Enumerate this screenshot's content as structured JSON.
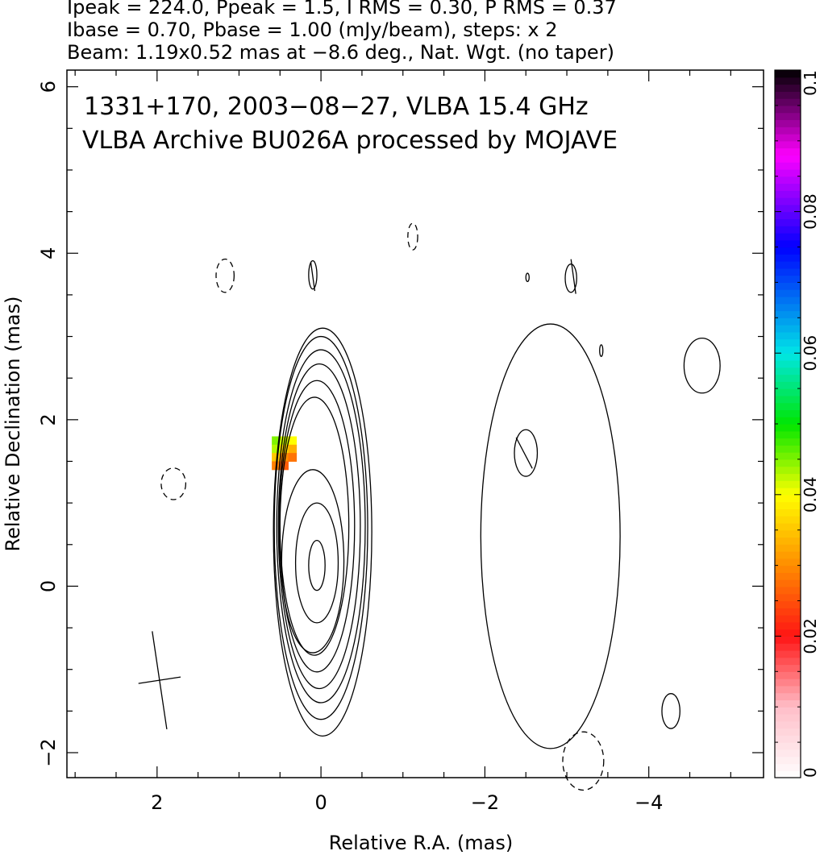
{
  "header": {
    "line1": "Ipeak = 224.0, Ppeak = 1.5, I RMS = 0.30, P RMS = 0.37",
    "line2": "Ibase = 0.70, Pbase = 1.00 (mJy/beam), steps: x 2",
    "line3": "Beam: 1.19x0.52 mas at −8.6 deg., Nat. Wgt. (no taper)"
  },
  "chart_data": {
    "type": "heatmap",
    "annotation_line1": "1331+170, 2003−08−27, VLBA 15.4 GHz",
    "annotation_line2": "VLBA Archive BU026A processed by MOJAVE",
    "xlabel": "Relative R.A. (mas)",
    "ylabel": "Relative Declination (mas)",
    "xlim": [
      3.1,
      -5.4
    ],
    "ylim": [
      -2.3,
      6.2
    ],
    "x_ticks": [
      2,
      0,
      -2,
      -4
    ],
    "x_tick_labels": [
      "2",
      "0",
      "−2",
      "−4"
    ],
    "y_ticks": [
      -2,
      0,
      2,
      4,
      6
    ],
    "y_tick_labels": [
      "−2",
      "0",
      "2",
      "4",
      "6"
    ],
    "colorbar": {
      "min": 0,
      "max": 0.1,
      "ticks": [
        0,
        0.02,
        0.04,
        0.06,
        0.08,
        0.1
      ],
      "tick_labels": [
        "0",
        "0.02",
        "0.04",
        "0.06",
        "0.08",
        "0.1"
      ]
    },
    "core_contours": [
      {
        "level": 0.7,
        "cx": -0.02,
        "cy": 0.65,
        "rx": 0.6,
        "ry": 2.45,
        "tilt": 0
      },
      {
        "level": 1.4,
        "cx": 0.0,
        "cy": 0.7,
        "rx": 0.57,
        "ry": 2.3,
        "tilt": 0
      },
      {
        "level": 2.8,
        "cx": 0.0,
        "cy": 0.72,
        "rx": 0.54,
        "ry": 2.12,
        "tilt": 0
      },
      {
        "level": 5.6,
        "cx": 0.02,
        "cy": 0.72,
        "rx": 0.5,
        "ry": 1.95,
        "tilt": 0
      },
      {
        "level": 11.2,
        "cx": 0.05,
        "cy": 0.72,
        "rx": 0.46,
        "ry": 1.75,
        "tilt": 0
      },
      {
        "level": 22.4,
        "cx": 0.08,
        "cy": 0.72,
        "rx": 0.42,
        "ry": 1.55,
        "tilt": 0
      },
      {
        "level": 44.8,
        "cx": 0.1,
        "cy": 0.3,
        "rx": 0.38,
        "ry": 1.1,
        "tilt": 0
      },
      {
        "level": 89.6,
        "cx": 0.05,
        "cy": 0.28,
        "rx": 0.26,
        "ry": 0.72,
        "tilt": 0
      },
      {
        "level": 179.2,
        "cx": 0.05,
        "cy": 0.25,
        "rx": 0.1,
        "ry": 0.3,
        "tilt": 0
      }
    ],
    "lobe_contours": [
      {
        "level": 0.7,
        "cx": -2.8,
        "cy": 0.6,
        "rx": 0.85,
        "ry": 2.55,
        "tilt": 0
      },
      {
        "level": 0.7,
        "cx": -2.5,
        "cy": 1.6,
        "rx": 0.14,
        "ry": 0.28,
        "tilt": 0
      },
      {
        "level": 0.7,
        "cx": -4.65,
        "cy": 2.65,
        "rx": 0.22,
        "ry": 0.33,
        "tilt": 0
      },
      {
        "level": 0.7,
        "cx": -4.27,
        "cy": -1.5,
        "rx": 0.11,
        "ry": 0.21,
        "tilt": 0
      },
      {
        "level": 0.7,
        "cx": -3.05,
        "cy": 3.7,
        "rx": 0.07,
        "ry": 0.17,
        "tilt": 0
      },
      {
        "level": 0.7,
        "cx": -2.52,
        "cy": 3.71,
        "rx": 0.02,
        "ry": 0.05,
        "tilt": 0
      },
      {
        "level": 0.7,
        "cx": -3.42,
        "cy": 2.83,
        "rx": 0.02,
        "ry": 0.07,
        "tilt": 0
      },
      {
        "level": 0.7,
        "cx": 0.1,
        "cy": 3.74,
        "rx": 0.05,
        "ry": 0.17,
        "tilt": 0
      }
    ],
    "negative_contours": [
      {
        "level": -0.7,
        "cx": 1.17,
        "cy": 3.73,
        "rx": 0.11,
        "ry": 0.2
      },
      {
        "level": -0.7,
        "cx": 1.8,
        "cy": 1.23,
        "rx": 0.15,
        "ry": 0.19
      },
      {
        "level": -0.7,
        "cx": -1.12,
        "cy": 4.2,
        "rx": 0.06,
        "ry": 0.16
      },
      {
        "level": -0.7,
        "cx": -3.2,
        "cy": -2.1,
        "rx": 0.25,
        "ry": 0.35
      }
    ],
    "polarization_pixels": [
      {
        "ra": 0.55,
        "dec": 1.75,
        "p": 0.045
      },
      {
        "ra": 0.45,
        "dec": 1.75,
        "p": 0.042
      },
      {
        "ra": 0.35,
        "dec": 1.75,
        "p": 0.04
      },
      {
        "ra": 0.55,
        "dec": 1.65,
        "p": 0.043
      },
      {
        "ra": 0.45,
        "dec": 1.65,
        "p": 0.037
      },
      {
        "ra": 0.35,
        "dec": 1.65,
        "p": 0.033
      },
      {
        "ra": 0.55,
        "dec": 1.55,
        "p": 0.035
      },
      {
        "ra": 0.45,
        "dec": 1.55,
        "p": 0.03
      },
      {
        "ra": 0.35,
        "dec": 1.55,
        "p": 0.028
      },
      {
        "ra": 0.55,
        "dec": 1.45,
        "p": 0.029
      },
      {
        "ra": 0.45,
        "dec": 1.45,
        "p": 0.026
      }
    ],
    "evpa_ticks": [
      {
        "ra": -2.48,
        "dec": 1.6,
        "len": 0.42,
        "angle_deg": -28
      },
      {
        "ra": -3.08,
        "dec": 3.72,
        "len": 0.42,
        "angle_deg": -8
      },
      {
        "ra": 0.1,
        "dec": 3.72,
        "len": 0.35,
        "angle_deg": -8
      }
    ],
    "beam": {
      "ra": 1.97,
      "dec": -1.13,
      "major_mas": 1.19,
      "minor_mas": 0.52,
      "pa_deg": -8.6
    }
  }
}
